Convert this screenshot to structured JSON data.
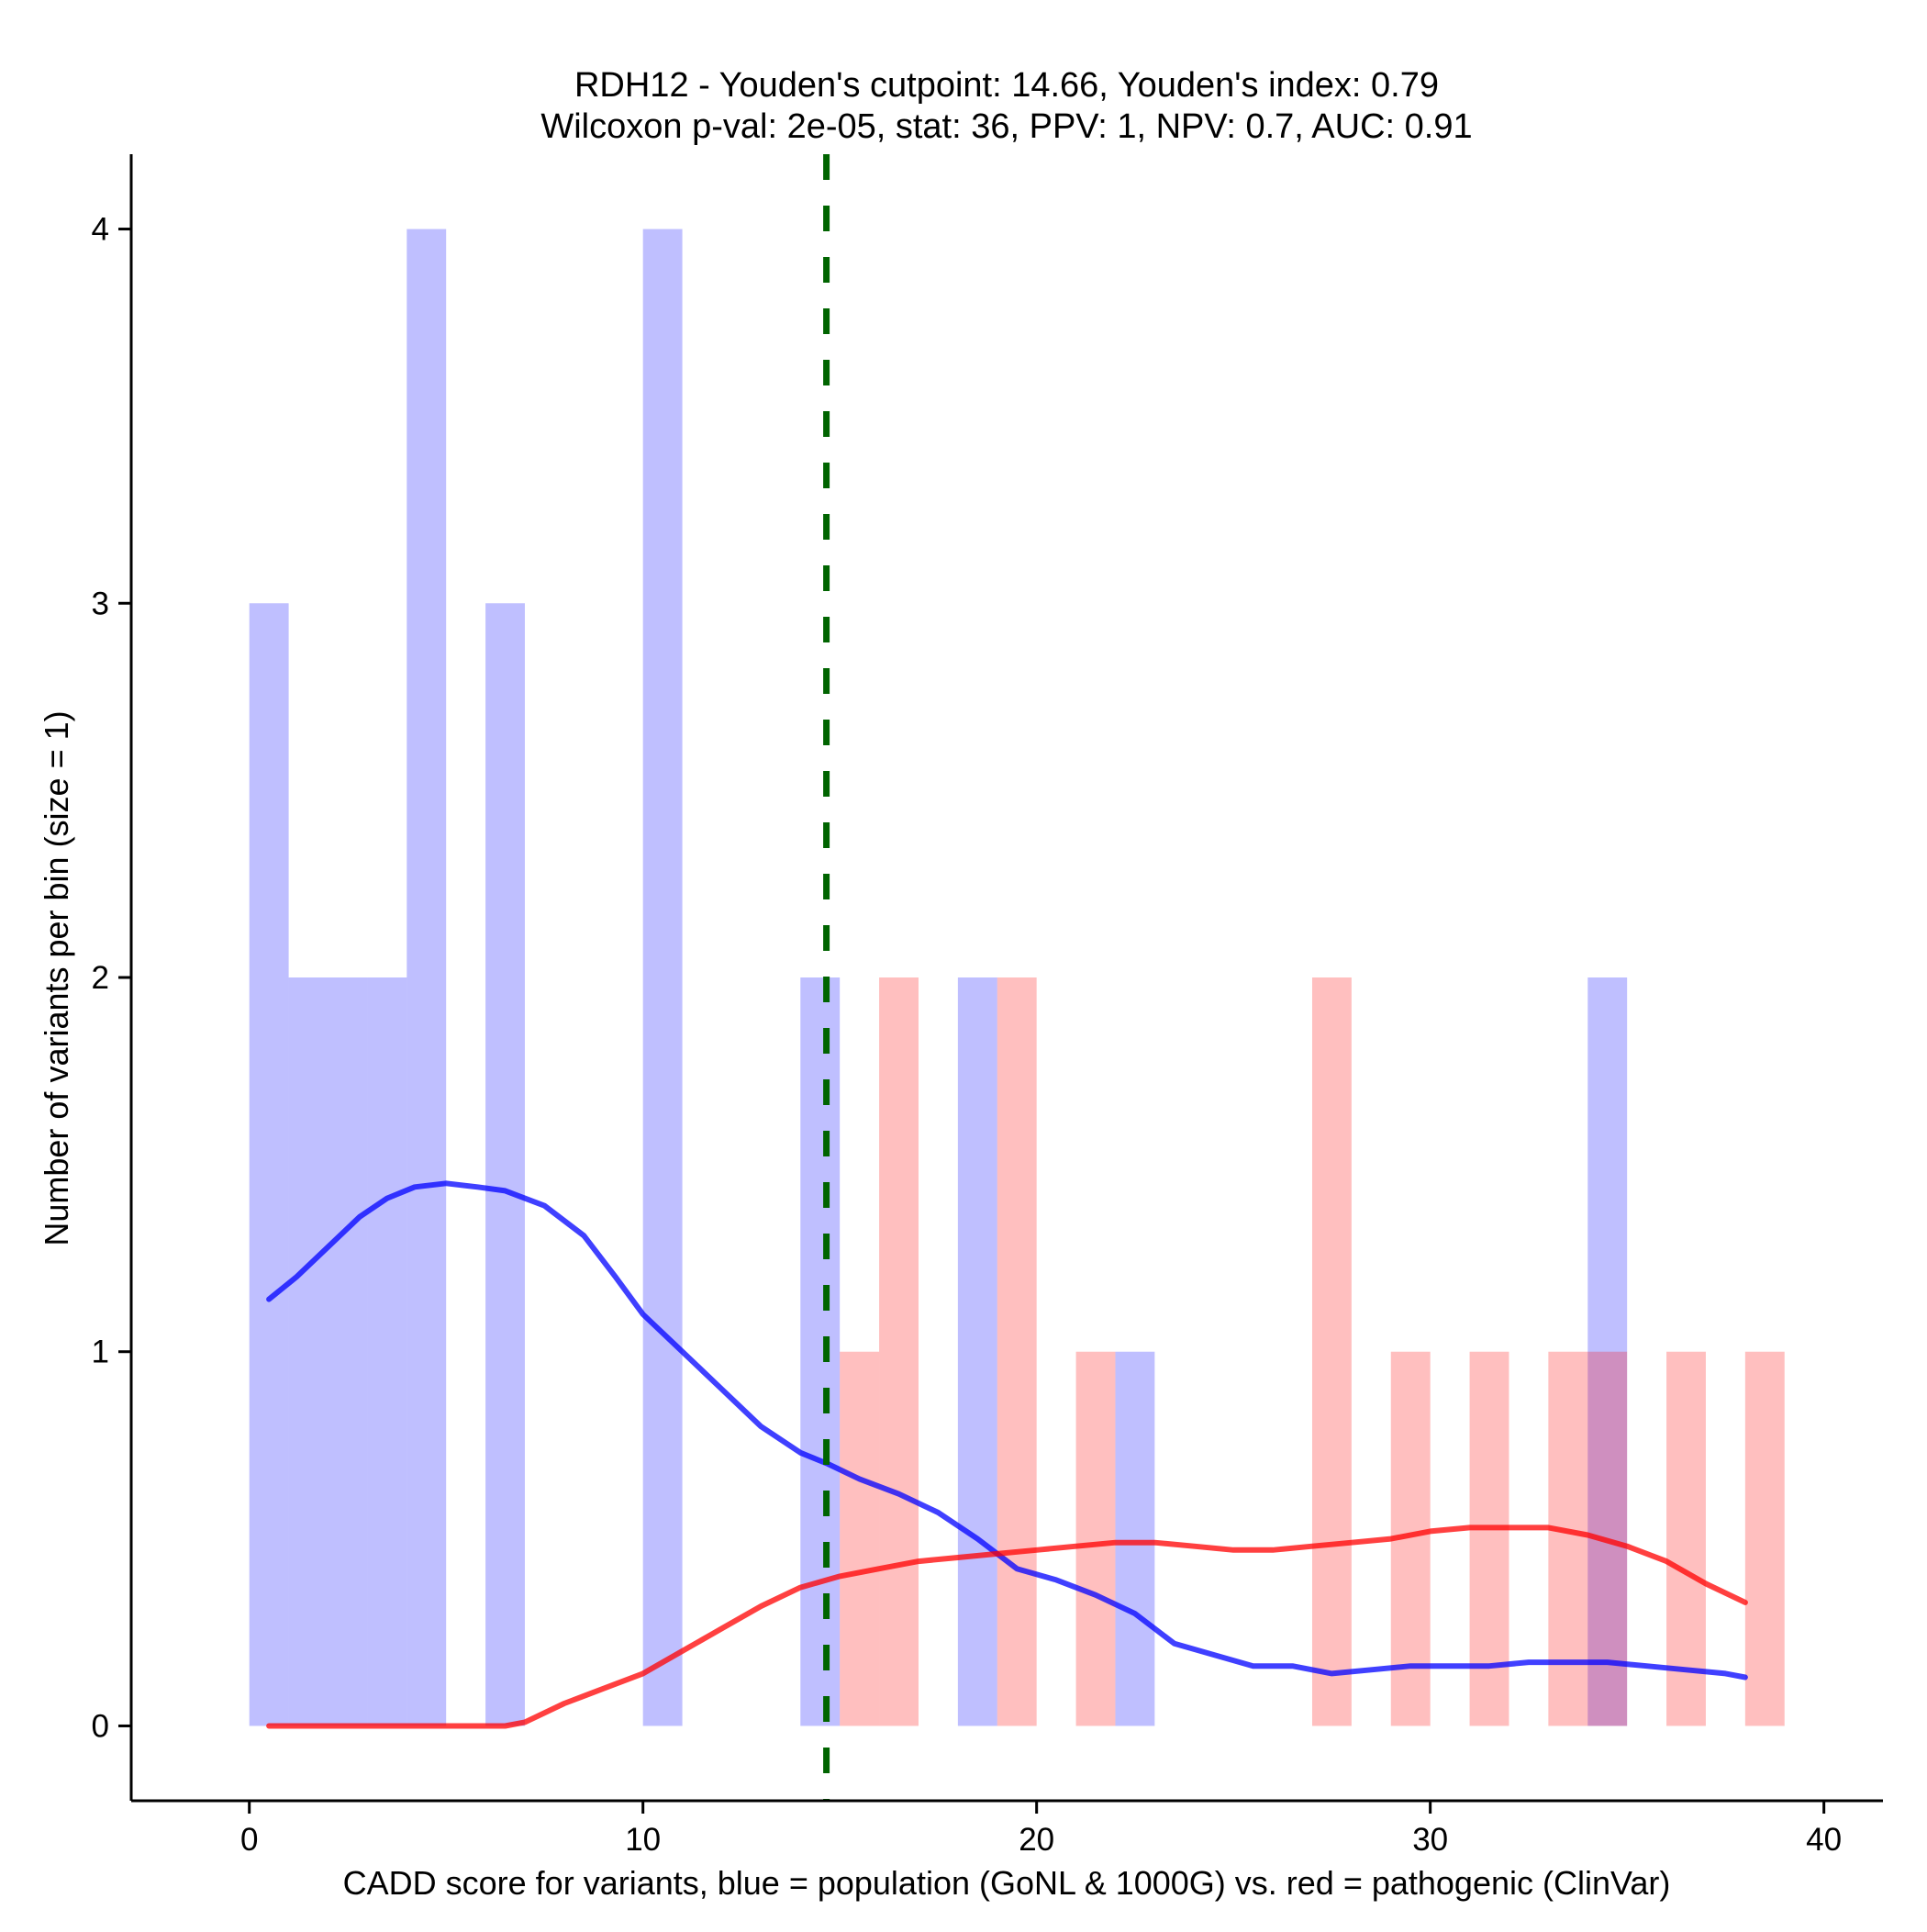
{
  "chart_data": {
    "type": "histogram",
    "title_line1": "RDH12 - Youden's cutpoint: 14.66, Youden's index: 0.79",
    "title_line2": "Wilcoxon p-val: 2e-05, stat: 36, PPV: 1, NPV: 0.7, AUC: 0.91",
    "xlabel": "CADD score for variants, blue = population (GoNL & 1000G) vs. red = pathogenic (ClinVar)",
    "ylabel": "Number of variants per bin (size = 1)",
    "xlim": [
      -3,
      41.5
    ],
    "ylim": [
      -0.2,
      4.2
    ],
    "x_ticks": [
      0,
      10,
      20,
      30,
      40
    ],
    "x_tick_labels": [
      "0",
      "10",
      "20",
      "30",
      "40"
    ],
    "y_ticks": [
      0,
      1,
      2,
      3,
      4
    ],
    "y_tick_labels": [
      "0",
      "1",
      "2",
      "3",
      "4"
    ],
    "bin_size": 1,
    "cutpoint": 14.66,
    "cutpoint_color": "#006400",
    "series": [
      {
        "name": "population (GoNL & 1000G)",
        "color": "#0000ff",
        "bar_opacity": 0.25,
        "bins": [
          {
            "start": 0,
            "count": 3
          },
          {
            "start": 1,
            "count": 2
          },
          {
            "start": 2,
            "count": 2
          },
          {
            "start": 3,
            "count": 2
          },
          {
            "start": 4,
            "count": 4
          },
          {
            "start": 6,
            "count": 3
          },
          {
            "start": 10,
            "count": 4
          },
          {
            "start": 14,
            "count": 2
          },
          {
            "start": 18,
            "count": 2
          },
          {
            "start": 22,
            "count": 1
          },
          {
            "start": 34,
            "count": 2
          }
        ],
        "density_curve": [
          [
            0.5,
            1.14
          ],
          [
            1.2,
            1.2
          ],
          [
            2,
            1.28
          ],
          [
            2.8,
            1.36
          ],
          [
            3.5,
            1.41
          ],
          [
            4.2,
            1.44
          ],
          [
            5,
            1.45
          ],
          [
            5.8,
            1.44
          ],
          [
            6.5,
            1.43
          ],
          [
            7.5,
            1.39
          ],
          [
            8.5,
            1.31
          ],
          [
            9.3,
            1.2
          ],
          [
            10,
            1.1
          ],
          [
            11,
            1.0
          ],
          [
            12,
            0.9
          ],
          [
            13,
            0.8
          ],
          [
            14,
            0.73
          ],
          [
            14.7,
            0.7
          ],
          [
            15.5,
            0.66
          ],
          [
            16.5,
            0.62
          ],
          [
            17.5,
            0.57
          ],
          [
            18.5,
            0.5
          ],
          [
            19.5,
            0.42
          ],
          [
            20.5,
            0.39
          ],
          [
            21.5,
            0.35
          ],
          [
            22.5,
            0.3
          ],
          [
            23.5,
            0.22
          ],
          [
            24.5,
            0.19
          ],
          [
            25.5,
            0.16
          ],
          [
            26.5,
            0.16
          ],
          [
            27.5,
            0.14
          ],
          [
            28.5,
            0.15
          ],
          [
            29.5,
            0.16
          ],
          [
            30.5,
            0.16
          ],
          [
            31.5,
            0.16
          ],
          [
            32.5,
            0.17
          ],
          [
            33.5,
            0.17
          ],
          [
            34.5,
            0.17
          ],
          [
            35.5,
            0.16
          ],
          [
            36.5,
            0.15
          ],
          [
            37.5,
            0.14
          ],
          [
            38,
            0.13
          ]
        ]
      },
      {
        "name": "pathogenic (ClinVar)",
        "color": "#ff0000",
        "bar_opacity": 0.25,
        "bins": [
          {
            "start": 15,
            "count": 1
          },
          {
            "start": 16,
            "count": 2
          },
          {
            "start": 19,
            "count": 2
          },
          {
            "start": 21,
            "count": 1
          },
          {
            "start": 27,
            "count": 2
          },
          {
            "start": 29,
            "count": 1
          },
          {
            "start": 31,
            "count": 1
          },
          {
            "start": 33,
            "count": 1
          },
          {
            "start": 34,
            "count": 1
          },
          {
            "start": 36,
            "count": 1
          },
          {
            "start": 38,
            "count": 1
          }
        ],
        "density_curve": [
          [
            0.5,
            0.0
          ],
          [
            2,
            0.0
          ],
          [
            4,
            0.0
          ],
          [
            5,
            0.0
          ],
          [
            6.5,
            0.0
          ],
          [
            7,
            0.01
          ],
          [
            8,
            0.06
          ],
          [
            9,
            0.1
          ],
          [
            10,
            0.14
          ],
          [
            11,
            0.2
          ],
          [
            12,
            0.26
          ],
          [
            13,
            0.32
          ],
          [
            14,
            0.37
          ],
          [
            15,
            0.4
          ],
          [
            16,
            0.42
          ],
          [
            17,
            0.44
          ],
          [
            18,
            0.45
          ],
          [
            19,
            0.46
          ],
          [
            20,
            0.47
          ],
          [
            21,
            0.48
          ],
          [
            22,
            0.49
          ],
          [
            23,
            0.49
          ],
          [
            24,
            0.48
          ],
          [
            25,
            0.47
          ],
          [
            26,
            0.47
          ],
          [
            27,
            0.48
          ],
          [
            28,
            0.49
          ],
          [
            29,
            0.5
          ],
          [
            30,
            0.52
          ],
          [
            31,
            0.53
          ],
          [
            32,
            0.53
          ],
          [
            33,
            0.53
          ],
          [
            34,
            0.51
          ],
          [
            35,
            0.48
          ],
          [
            36,
            0.44
          ],
          [
            37,
            0.38
          ],
          [
            38,
            0.33
          ]
        ]
      }
    ]
  }
}
